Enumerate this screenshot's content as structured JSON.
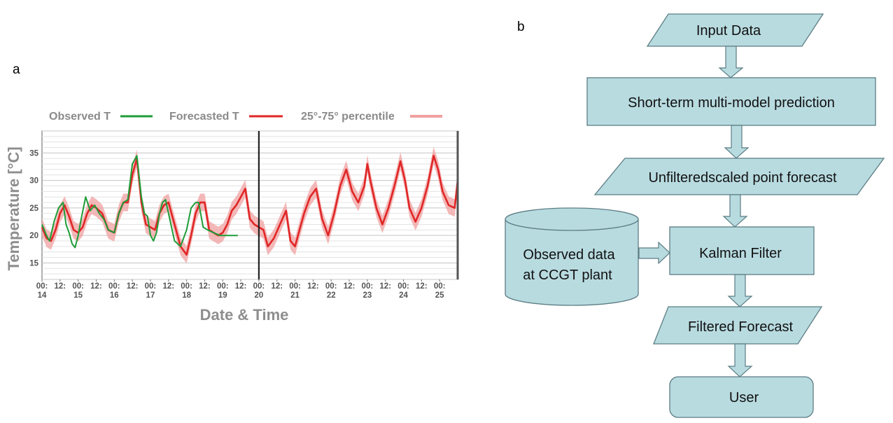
{
  "panels": {
    "a": "a",
    "b": "b"
  },
  "chart_data": {
    "type": "line",
    "xlabel": "Date & Time",
    "ylabel": "Temperature [°C]",
    "x_unit": "hours since day 14 00:00",
    "xlim": [
      0,
      276
    ],
    "ylim": [
      12,
      39
    ],
    "y_ticks": [
      15,
      20,
      25,
      30,
      35
    ],
    "y_tick_labels": [
      "15",
      "20",
      "25",
      "30",
      "35"
    ],
    "x_ticks": [
      {
        "x": 0,
        "top": "00:",
        "bottom": "14"
      },
      {
        "x": 12,
        "top": "12:",
        "bottom": ""
      },
      {
        "x": 24,
        "top": "00:",
        "bottom": "15"
      },
      {
        "x": 36,
        "top": "12:",
        "bottom": ""
      },
      {
        "x": 48,
        "top": "00:",
        "bottom": "16"
      },
      {
        "x": 60,
        "top": "12:",
        "bottom": ""
      },
      {
        "x": 72,
        "top": "00:",
        "bottom": "17"
      },
      {
        "x": 84,
        "top": "12:",
        "bottom": ""
      },
      {
        "x": 96,
        "top": "00:",
        "bottom": "18"
      },
      {
        "x": 108,
        "top": "12:",
        "bottom": ""
      },
      {
        "x": 120,
        "top": "00:",
        "bottom": "19"
      },
      {
        "x": 132,
        "top": "12:",
        "bottom": ""
      },
      {
        "x": 144,
        "top": "00:",
        "bottom": "20"
      },
      {
        "x": 156,
        "top": "12:",
        "bottom": ""
      },
      {
        "x": 168,
        "top": "00:",
        "bottom": "21"
      },
      {
        "x": 180,
        "top": "12:",
        "bottom": ""
      },
      {
        "x": 192,
        "top": "00:",
        "bottom": "22"
      },
      {
        "x": 204,
        "top": "12:",
        "bottom": ""
      },
      {
        "x": 216,
        "top": "00:",
        "bottom": "23"
      },
      {
        "x": 228,
        "top": "12:",
        "bottom": ""
      },
      {
        "x": 240,
        "top": "00:",
        "bottom": "24"
      },
      {
        "x": 252,
        "top": "12:",
        "bottom": ""
      },
      {
        "x": 264,
        "top": "00:",
        "bottom": "25"
      }
    ],
    "vline_x": 144,
    "grid": true,
    "legend": {
      "placement": "top",
      "entries": [
        {
          "label": "Observed T",
          "color": "#1e9c38"
        },
        {
          "label": "Forecasted T",
          "color": "#e02626"
        },
        {
          "label": "25°-75° percentile",
          "color": "#f0a0a0"
        }
      ]
    },
    "series": [
      {
        "name": "Observed T",
        "color": "#1e9c38",
        "x": [
          0,
          3,
          5,
          8,
          11,
          14,
          16,
          18,
          20,
          22,
          24,
          26,
          29,
          32,
          35,
          38,
          41,
          44,
          48,
          51,
          54,
          57,
          60,
          63,
          66,
          68,
          70,
          72,
          74,
          76,
          78,
          80,
          82,
          84,
          88,
          92,
          96,
          99,
          102,
          104,
          107,
          110,
          114,
          118,
          120,
          122,
          124,
          127,
          130
        ],
        "y": [
          22,
          20,
          19,
          22.5,
          25,
          26,
          22,
          20.5,
          18.5,
          17.8,
          20,
          23,
          27,
          24.5,
          25.5,
          24,
          23,
          21,
          20.5,
          24,
          26,
          26.5,
          33,
          34.5,
          27,
          24,
          23.5,
          20,
          19,
          20.5,
          24,
          26,
          26.5,
          24,
          19,
          18,
          21,
          25,
          26,
          26,
          21.5,
          21,
          20.5,
          20,
          20,
          20,
          20,
          20,
          20
        ]
      },
      {
        "name": "Forecasted T",
        "color": "#e02626",
        "x": [
          0,
          3,
          6,
          9,
          12,
          15,
          18,
          21,
          24,
          27,
          30,
          33,
          36,
          40,
          44,
          48,
          51,
          54,
          57,
          60,
          63,
          66,
          69,
          72,
          75,
          78,
          81,
          84,
          88,
          92,
          96,
          99,
          102,
          105,
          108,
          111,
          114,
          117,
          120,
          123,
          126,
          129,
          132,
          135,
          138,
          141,
          144,
          147,
          150,
          154,
          158,
          162,
          165,
          168,
          171,
          174,
          178,
          182,
          186,
          190,
          194,
          198,
          202,
          206,
          210,
          214,
          216,
          218,
          222,
          226,
          230,
          234,
          238,
          241,
          244,
          248,
          252,
          256,
          260,
          263,
          266,
          270,
          274,
          276
        ],
        "y": [
          21.5,
          19.5,
          19,
          21,
          24,
          25.5,
          23.5,
          21,
          20.5,
          21.5,
          24,
          25.5,
          25,
          24,
          21,
          20.5,
          24,
          26,
          26,
          31,
          34,
          26,
          22,
          21.5,
          21,
          24,
          25.5,
          26,
          22,
          18,
          16.5,
          20,
          24,
          26,
          26,
          21,
          20.5,
          20,
          20.5,
          22,
          24.5,
          25.5,
          27,
          28.5,
          23,
          22,
          21.5,
          21,
          18,
          19.5,
          22,
          24.5,
          19,
          18,
          21,
          24,
          27,
          28.5,
          23,
          20,
          24,
          29,
          32,
          28,
          26,
          29,
          33,
          30,
          25,
          22,
          25,
          29,
          33.5,
          30,
          25,
          22.5,
          25,
          29,
          34.5,
          32,
          28,
          25.5,
          25,
          30
        ]
      }
    ],
    "band": {
      "name": "25°-75° percentile",
      "color": "#f0a0a0",
      "half_width": 1.6
    }
  },
  "flowchart": {
    "input": "Input Data",
    "step1": "Short-term multi-model prediction",
    "step2": "Unfilteredscaled point forecast",
    "db_line1": "Observed data",
    "db_line2": "at CCGT plant",
    "kalman": "Kalman Filter",
    "filtered": "Filtered Forecast",
    "user": "User"
  }
}
